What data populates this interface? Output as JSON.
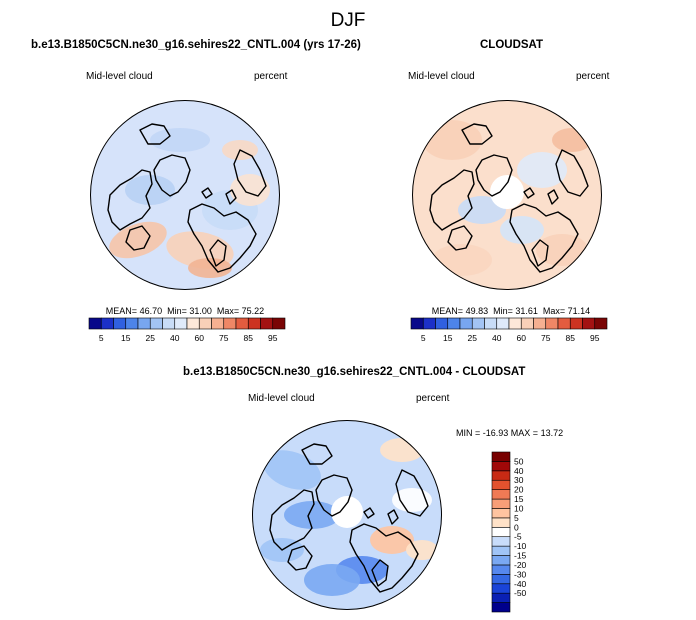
{
  "figure": {
    "title": "DJF",
    "colors": {
      "palette_1": [
        "#08088a",
        "#1c30c8",
        "#3060e0",
        "#4d84ea",
        "#78a6f0",
        "#a3c4f4",
        "#c8dcf7",
        "#dfeafa",
        "#fde8d9",
        "#f8d0b8",
        "#f6b091",
        "#ef8766",
        "#e35c3f",
        "#cc3321",
        "#a31212",
        "#7a0505"
      ],
      "palette_2": [
        "#00008c",
        "#0a20b4",
        "#1a44d8",
        "#3468e4",
        "#5688ee",
        "#7aa8f2",
        "#a0c4f6",
        "#c8dcfa",
        "#ffffff",
        "#ffe2c8",
        "#ffc4a0",
        "#f89e78",
        "#f07a55",
        "#e2522e",
        "#c82a14",
        "#a00808",
        "#780000"
      ]
    }
  },
  "chart_data": [
    {
      "type": "heatmap",
      "projection": "polar-stereographic-north",
      "title": "b.e13.B1850C5CN.ne30_g16.sehires22_CNTL.004 (yrs 17-26)",
      "left_label": "Mid-level cloud",
      "right_label": "percent",
      "stats": {
        "mean": "46.70",
        "min": "31.00",
        "max": "75.22"
      },
      "colorbar": {
        "orientation": "horizontal",
        "ticks": [
          "5",
          "15",
          "25",
          "40",
          "60",
          "75",
          "85",
          "95"
        ]
      }
    },
    {
      "type": "heatmap",
      "projection": "polar-stereographic-north",
      "title": "CLOUDSAT",
      "left_label": "Mid-level cloud",
      "right_label": "percent",
      "stats": {
        "mean": "49.83",
        "min": "31.61",
        "max": "71.14"
      },
      "colorbar": {
        "orientation": "horizontal",
        "ticks": [
          "5",
          "15",
          "25",
          "40",
          "60",
          "75",
          "85",
          "95"
        ]
      }
    },
    {
      "type": "heatmap",
      "projection": "polar-stereographic-north",
      "title": "b.e13.B1850C5CN.ne30_g16.sehires22_CNTL.004 - CLOUDSAT",
      "left_label": "Mid-level cloud",
      "right_label": "percent",
      "stats": {
        "min": "-16.93",
        "max": "13.72"
      },
      "colorbar": {
        "orientation": "vertical",
        "ticks": [
          "50",
          "40",
          "30",
          "20",
          "15",
          "10",
          "5",
          "0",
          "-5",
          "-10",
          "-15",
          "-20",
          "-30",
          "-40",
          "-50"
        ]
      }
    }
  ]
}
